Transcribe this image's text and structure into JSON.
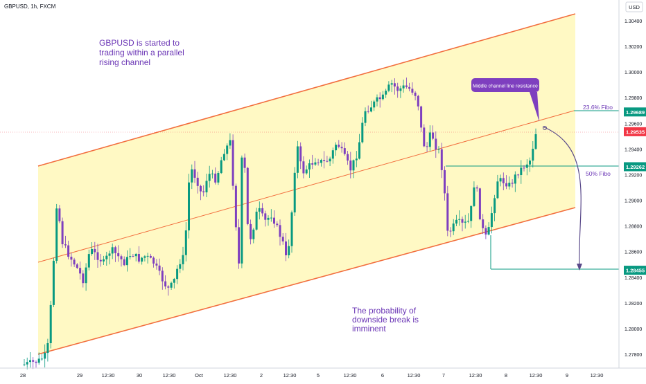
{
  "header": {
    "symbol": "GBPUSD, 1h, FXCM",
    "currency": "USD"
  },
  "chart_data": {
    "type": "candlestick",
    "y_ticks": [
      1.278,
      1.28,
      1.282,
      1.284,
      1.286,
      1.288,
      1.29,
      1.292,
      1.294,
      1.296,
      1.298,
      1.3,
      1.302,
      1.304
    ],
    "ylim": [
      1.277,
      1.305
    ],
    "x_ticks": [
      "28",
      "29",
      "12:30",
      "30",
      "12:30",
      "Oct",
      "12:30",
      "2",
      "12:30",
      "5",
      "12:30",
      "6",
      "12:30",
      "7",
      "12:30",
      "8",
      "12:30",
      "9",
      "12:30"
    ],
    "price_labels": [
      {
        "id": "fibo236",
        "text": "1.29689",
        "value": 1.29689,
        "color": "#089981"
      },
      {
        "id": "current",
        "text": "1.29535",
        "value": 1.29535,
        "color": "#f23645"
      },
      {
        "id": "fibo50",
        "text": "1.29262",
        "value": 1.29262,
        "color": "#089981"
      },
      {
        "id": "target",
        "text": "1.28455",
        "value": 1.28455,
        "color": "#089981"
      }
    ],
    "fibo_labels": [
      {
        "id": "f236",
        "text": "23.6% Fibo",
        "level": 1.29689
      },
      {
        "id": "f50",
        "text": "50% Fibo",
        "level": 1.29262
      }
    ],
    "annotations": {
      "top_left": [
        "GBPUSD is started to",
        "trading within a parallel",
        "rising channel"
      ],
      "bottom": [
        "The probability of",
        "downside break is",
        "imminent"
      ],
      "callout": "Middle channel line resistance"
    },
    "colors": {
      "bull": "#089981",
      "bear": "#7e3fbf",
      "channel": "#f26d3d",
      "channel_fill": "#fff9c4",
      "annotation_text": "#6a35b5",
      "callout_bg": "#7e3fbf"
    }
  }
}
